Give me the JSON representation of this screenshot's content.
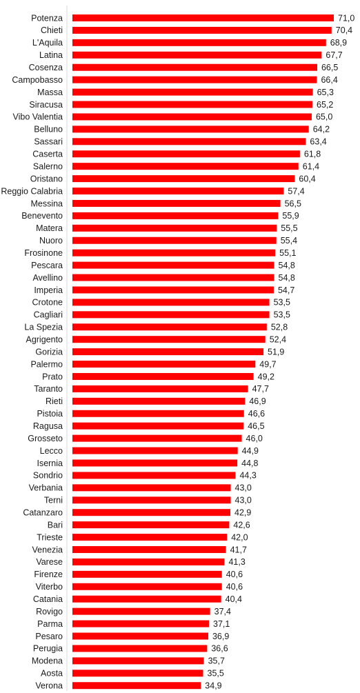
{
  "chart_data": {
    "type": "bar",
    "orientation": "horizontal",
    "bar_color": "#ff0000",
    "grid": false,
    "legend": "none",
    "xlim": [
      0,
      71.0
    ],
    "categories": [
      "Potenza",
      "Chieti",
      "L'Aquila",
      "Latina",
      "Cosenza",
      "Campobasso",
      "Massa",
      "Siracusa",
      "Vibo Valentia",
      "Belluno",
      "Sassari",
      "Caserta",
      "Salerno",
      "Oristano",
      "Reggio Calabria",
      "Messina",
      "Benevento",
      "Matera",
      "Nuoro",
      "Frosinone",
      "Pescara",
      "Avellino",
      "Imperia",
      "Crotone",
      "Cagliari",
      "La Spezia",
      "Agrigento",
      "Gorizia",
      "Palermo",
      "Prato",
      "Taranto",
      "Rieti",
      "Pistoia",
      "Ragusa",
      "Grosseto",
      "Lecco",
      "Isernia",
      "Sondrio",
      "Verbania",
      "Terni",
      "Catanzaro",
      "Bari",
      "Trieste",
      "Venezia",
      "Varese",
      "Firenze",
      "Viterbo",
      "Catania",
      "Rovigo",
      "Parma",
      "Pesaro",
      "Perugia",
      "Modena",
      "Aosta",
      "Verona"
    ],
    "values": [
      71.0,
      70.4,
      68.9,
      67.7,
      66.5,
      66.4,
      65.3,
      65.2,
      65.0,
      64.2,
      63.4,
      61.8,
      61.4,
      60.4,
      57.4,
      56.5,
      55.9,
      55.5,
      55.4,
      55.1,
      54.8,
      54.8,
      54.7,
      53.5,
      53.5,
      52.8,
      52.4,
      51.9,
      49.7,
      49.2,
      47.7,
      46.9,
      46.6,
      46.5,
      46.0,
      44.9,
      44.8,
      44.3,
      43.0,
      43.0,
      42.9,
      42.6,
      42.0,
      41.7,
      41.3,
      40.6,
      40.6,
      40.4,
      37.4,
      37.1,
      36.9,
      36.6,
      35.7,
      35.5,
      34.9
    ],
    "value_labels": [
      "71,0",
      "70,4",
      "68,9",
      "67,7",
      "66,5",
      "66,4",
      "65,3",
      "65,2",
      "65,0",
      "64,2",
      "63,4",
      "61,8",
      "61,4",
      "60,4",
      "57,4",
      "56,5",
      "55,9",
      "55,5",
      "55,4",
      "55,1",
      "54,8",
      "54,8",
      "54,7",
      "53,5",
      "53,5",
      "52,8",
      "52,4",
      "51,9",
      "49,7",
      "49,2",
      "47,7",
      "46,9",
      "46,6",
      "46,5",
      "46,0",
      "44,9",
      "44,8",
      "44,3",
      "43,0",
      "43,0",
      "42,9",
      "42,6",
      "42,0",
      "41,7",
      "41,3",
      "40,6",
      "40,6",
      "40,4",
      "37,4",
      "37,1",
      "36,9",
      "36,6",
      "35,7",
      "35,5",
      "34,9"
    ]
  }
}
